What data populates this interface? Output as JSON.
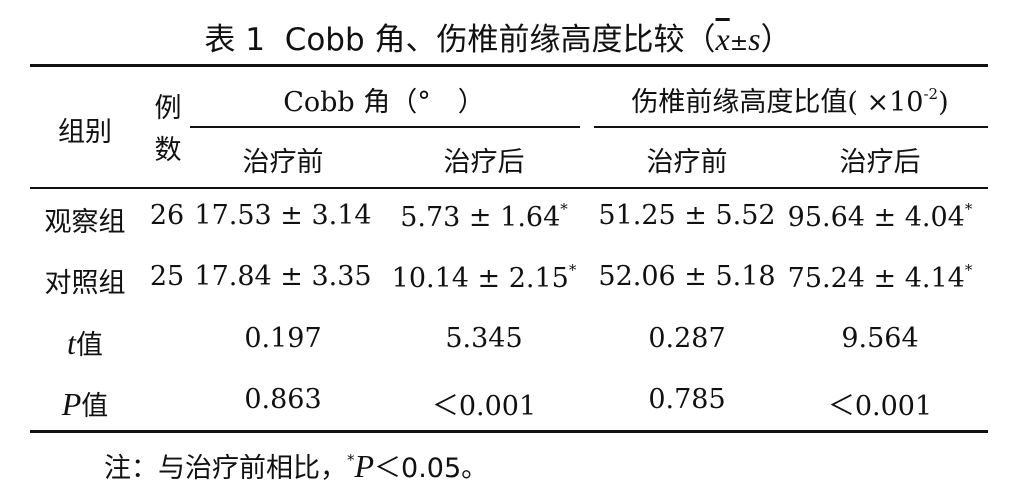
{
  "title": {
    "label": "表 1",
    "text": "Cobb 角、伤椎前缘高度比较（",
    "mean": "x",
    "pm": "±",
    "sd": "s",
    "close": "）"
  },
  "table": {
    "header": {
      "group": "组别",
      "n": "例数",
      "cobb": "Cobb 角（°　）",
      "ratio": {
        "text": "伤椎前缘高度比值( ×10",
        "sup": "-2",
        "close": ")"
      },
      "sub": [
        "治疗前",
        "治疗后",
        "治疗前",
        "治疗后"
      ]
    },
    "rows": [
      {
        "label": {
          "text": "观察组"
        },
        "n": 26,
        "cells": [
          {
            "text": "17.53 ± 3.14"
          },
          {
            "text": "5.73 ± 1.64",
            "sup": "*"
          },
          {
            "text": "51.25 ± 5.52"
          },
          {
            "text": "95.64 ± 4.04",
            "sup": "*"
          }
        ]
      },
      {
        "label": {
          "text": "对照组"
        },
        "n": 25,
        "cells": [
          {
            "text": "17.84 ± 3.35"
          },
          {
            "text": "10.14 ± 2.15",
            "sup": "*"
          },
          {
            "text": "52.06 ± 5.18"
          },
          {
            "text": "75.24 ± 4.14",
            "sup": "*"
          }
        ]
      },
      {
        "label": {
          "italic": "t",
          "text": "值"
        },
        "cells": [
          {
            "text": "0.197"
          },
          {
            "text": "5.345"
          },
          {
            "text": "0.287"
          },
          {
            "text": "9.564"
          }
        ]
      },
      {
        "label": {
          "italic": "P",
          "text": "值"
        },
        "cells": [
          {
            "text": "0.863"
          },
          {
            "text": "＜0.001"
          },
          {
            "text": "0.785"
          },
          {
            "text": "＜0.001"
          }
        ]
      }
    ]
  },
  "note": {
    "prefix": "注：与治疗前相比，",
    "sup": "*",
    "italic": "P",
    "text": "＜0.05。"
  }
}
